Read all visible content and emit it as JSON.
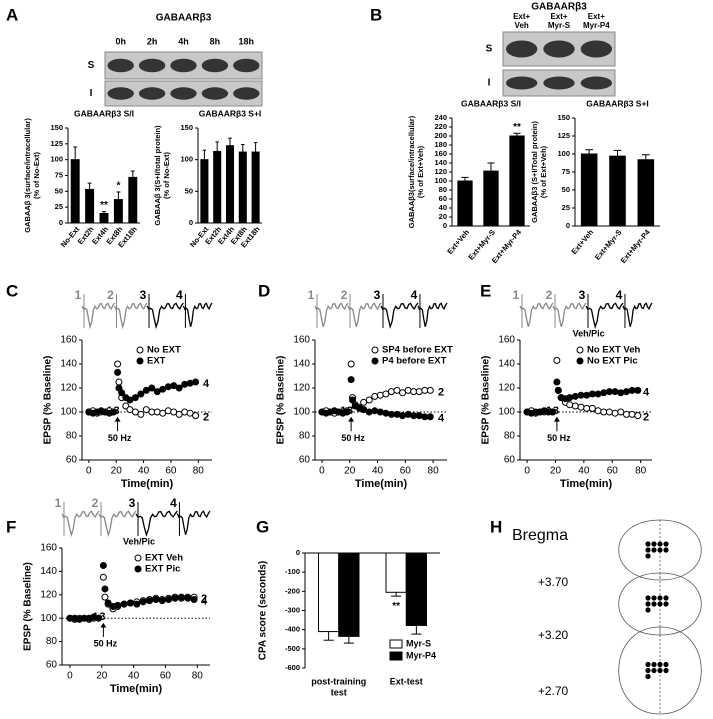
{
  "figure": {
    "panel_labels": [
      "A",
      "B",
      "C",
      "D",
      "E",
      "F",
      "G",
      "H"
    ],
    "blot_a": {
      "title": "GABAARβ3",
      "lanes": [
        "0h",
        "2h",
        "4h",
        "8h",
        "18h"
      ],
      "rows": [
        "S",
        "I"
      ]
    },
    "blot_b": {
      "title": "GABAARβ3",
      "lanes": [
        [
          "Ext+",
          "Veh"
        ],
        [
          "Ext+",
          "Myr-S"
        ],
        [
          "Ext+",
          "Myr-P4"
        ]
      ],
      "rows": [
        "S",
        "I"
      ]
    },
    "atlas": {
      "title": "Bregma",
      "levels": [
        "+3.70",
        "+3.20",
        "+2.70"
      ]
    }
  },
  "chart_data": [
    {
      "type": "bar",
      "title": "GABAARβ3 S/I",
      "y_label": [
        "GABAAβ 3(surface/intracellular)",
        "(% of No-Ext)"
      ],
      "categories": [
        "No-Ext",
        "Ext2h",
        "Ext4h",
        "Ext8h",
        "Ext18h"
      ],
      "values": [
        100,
        53,
        15,
        37,
        72
      ],
      "errors": [
        20,
        10,
        3,
        12,
        10
      ],
      "significance": [
        null,
        null,
        "**",
        "*",
        null
      ],
      "color": "#000000",
      "ylim": [
        0,
        150
      ],
      "yticks": [
        0,
        25,
        50,
        75,
        100,
        125,
        150
      ]
    },
    {
      "type": "bar",
      "title": "GABAARβ3 S+I",
      "y_label": [
        "GABAAβ 3(S+I/total protein)",
        "(% of No-Ext)"
      ],
      "categories": [
        "No-Ext",
        "Ext2h",
        "Ext4h",
        "Ext8h",
        "Ext18h"
      ],
      "values": [
        100,
        113,
        122,
        112,
        112
      ],
      "errors": [
        15,
        15,
        12,
        12,
        15
      ],
      "color": "#000000",
      "ylim": [
        0,
        150
      ],
      "yticks": [
        0,
        50,
        100,
        150
      ]
    },
    {
      "type": "bar",
      "title": "GABAARβ3 S/I",
      "y_label": [
        "GABAAβ3(surface/intracellular)",
        "(% of Ext+Veh)"
      ],
      "categories": [
        "Ext+Veh",
        "Ext+Myr-S",
        "Ext+Myr-P4"
      ],
      "values": [
        100,
        122,
        200
      ],
      "errors": [
        8,
        18,
        6
      ],
      "significance": [
        null,
        null,
        "**"
      ],
      "color": "#000000",
      "ylim": [
        0,
        240
      ],
      "yticks": [
        0,
        20,
        40,
        60,
        80,
        100,
        120,
        140,
        160,
        180,
        200,
        220,
        240
      ]
    },
    {
      "type": "bar",
      "title": "GABAARβ3 S+I",
      "y_label": [
        "GABAAβ3 (S+I/Total protein)",
        "(% of Ext+Veh)"
      ],
      "categories": [
        "Ext+Veh",
        "Ext+Myr-S",
        "Ext+Myr-P4"
      ],
      "values": [
        100,
        97,
        92
      ],
      "errors": [
        6,
        8,
        7
      ],
      "color": "#000000",
      "ylim": [
        0,
        150
      ],
      "yticks": [
        0,
        25,
        50,
        75,
        100,
        125,
        150
      ]
    },
    {
      "type": "line",
      "x": [
        0,
        3,
        6,
        9,
        12,
        15,
        18,
        21,
        22,
        24,
        27,
        30,
        34,
        38,
        42,
        46,
        50,
        54,
        58,
        62,
        66,
        70,
        74,
        78
      ],
      "series": [
        {
          "name": "No EXT",
          "marker_fill": "#ffffff",
          "end_label": "2",
          "values": [
            100,
            101,
            99,
            100,
            100,
            101,
            100,
            140,
            125,
            112,
            105,
            102,
            100,
            98,
            102,
            100,
            100,
            99,
            101,
            100,
            98,
            100,
            99,
            97
          ]
        },
        {
          "name": "EXT",
          "marker_fill": "#000000",
          "end_label": "4",
          "values": [
            100,
            99,
            100,
            101,
            100,
            99,
            100,
            133,
            120,
            116,
            112,
            110,
            112,
            115,
            118,
            120,
            117,
            119,
            121,
            122,
            120,
            123,
            124,
            125
          ]
        }
      ],
      "xlim": [
        -5,
        90
      ],
      "ylim": [
        60,
        160
      ],
      "xticks": [
        0,
        20,
        40,
        60,
        80
      ],
      "yticks": [
        60,
        80,
        100,
        120,
        140,
        160
      ],
      "x_label": "Time(min)",
      "y_label": "EPSP (% Baseline)",
      "reference_line": 100,
      "stimulus": {
        "x": 21,
        "label": "50 Hz"
      },
      "start_labels": [
        "1",
        "3"
      ],
      "trace_labels": [
        "1",
        "2",
        "3",
        "4"
      ]
    },
    {
      "type": "line",
      "x": [
        0,
        3,
        6,
        9,
        12,
        15,
        18,
        21,
        22,
        24,
        27,
        30,
        34,
        38,
        42,
        46,
        50,
        54,
        58,
        62,
        66,
        70,
        74,
        78
      ],
      "series": [
        {
          "name": "SP4 before EXT",
          "marker_fill": "#ffffff",
          "end_label": "2",
          "values": [
            100,
            101,
            100,
            99,
            100,
            100,
            101,
            140,
            112,
            106,
            104,
            108,
            110,
            113,
            114,
            115,
            117,
            118,
            116,
            118,
            117,
            117,
            118,
            118
          ]
        },
        {
          "name": "P4 before EXT",
          "marker_fill": "#000000",
          "end_label": "4",
          "values": [
            100,
            99,
            100,
            101,
            100,
            99,
            100,
            127,
            110,
            105,
            103,
            102,
            100,
            101,
            100,
            99,
            98,
            98,
            97,
            98,
            97,
            97,
            96,
            96
          ]
        }
      ],
      "xlim": [
        -5,
        90
      ],
      "ylim": [
        60,
        160
      ],
      "xticks": [
        0,
        20,
        40,
        60,
        80
      ],
      "yticks": [
        60,
        80,
        100,
        120,
        140,
        160
      ],
      "x_label": "Time(min)",
      "y_label": "EPSP (% Baseline)",
      "reference_line": 100,
      "stimulus": {
        "x": 21,
        "label": "50 Hz"
      },
      "start_labels": [
        "1",
        "3"
      ],
      "trace_labels": [
        "1",
        "2",
        "3",
        "4"
      ]
    },
    {
      "type": "line",
      "x": [
        0,
        3,
        6,
        9,
        12,
        15,
        18,
        21,
        22,
        24,
        27,
        30,
        34,
        38,
        42,
        46,
        50,
        54,
        58,
        62,
        66,
        70,
        74,
        78
      ],
      "series": [
        {
          "name": "No EXT Veh",
          "marker_fill": "#ffffff",
          "end_label": "2",
          "values": [
            100,
            101,
            99,
            100,
            100,
            101,
            100,
            143,
            118,
            112,
            108,
            106,
            105,
            104,
            103,
            103,
            101,
            100,
            100,
            99,
            100,
            98,
            98,
            97
          ]
        },
        {
          "name": "No EXT Pic",
          "marker_fill": "#000000",
          "end_label": "4",
          "values": [
            100,
            99,
            100,
            100,
            101,
            100,
            100,
            125,
            118,
            112,
            111,
            112,
            113,
            114,
            114,
            115,
            115,
            116,
            117,
            117,
            116,
            117,
            118,
            118
          ]
        }
      ],
      "xlim": [
        -5,
        88
      ],
      "ylim": [
        60,
        160
      ],
      "xticks": [
        0,
        20,
        40,
        60,
        80
      ],
      "yticks": [
        60,
        80,
        100,
        120,
        140,
        160
      ],
      "x_label": "Time(min)",
      "y_label": "EPSP (% Baseline)",
      "reference_line": 100,
      "stimulus": {
        "x": 21,
        "label": "50 Hz"
      },
      "start_labels": [
        "1",
        "3"
      ],
      "trace_labels": [
        "1",
        "2",
        "3",
        "4"
      ],
      "sub_label": "Veh/Pic"
    },
    {
      "type": "line",
      "x": [
        0,
        3,
        6,
        9,
        12,
        15,
        18,
        21,
        22,
        24,
        27,
        30,
        34,
        38,
        42,
        46,
        50,
        54,
        58,
        62,
        66,
        70,
        74,
        78
      ],
      "series": [
        {
          "name": "EXT Veh",
          "marker_fill": "#ffffff",
          "end_label": "2",
          "values": [
            100,
            99,
            100,
            100,
            99,
            100,
            100,
            135,
            118,
            112,
            108,
            110,
            112,
            113,
            114,
            115,
            116,
            117,
            116,
            117,
            118,
            117,
            118,
            118
          ]
        },
        {
          "name": "EXT Pic",
          "marker_fill": "#000000",
          "end_label": "4",
          "values": [
            100,
            100,
            99,
            100,
            100,
            101,
            100,
            145,
            125,
            113,
            110,
            111,
            112,
            113,
            112,
            114,
            115,
            116,
            115,
            116,
            117,
            118,
            117,
            116
          ]
        }
      ],
      "xlim": [
        -5,
        88
      ],
      "ylim": [
        60,
        160
      ],
      "xticks": [
        0,
        20,
        40,
        60,
        80
      ],
      "yticks": [
        60,
        80,
        100,
        120,
        140,
        160
      ],
      "x_label": "Time(min)",
      "y_label": "EPSP (% Baseline)",
      "reference_line": 100,
      "stimulus": {
        "x": 21,
        "label": "50 Hz"
      },
      "start_labels": [
        "1",
        "3"
      ],
      "trace_labels": [
        "1",
        "2",
        "3",
        "4"
      ],
      "sub_label": "Veh/Pic"
    },
    {
      "type": "bar",
      "y_label": "CPA score (seconds)",
      "categories": [
        [
          "post-training",
          "test"
        ],
        [
          "Ext-test"
        ]
      ],
      "series": [
        {
          "name": "Myr-S",
          "color": "#ffffff",
          "values": [
            -410,
            -205
          ],
          "errors": [
            45,
            20
          ],
          "significance": [
            null,
            "**"
          ]
        },
        {
          "name": "Myr-P4",
          "color": "#000000",
          "values": [
            -435,
            -378
          ],
          "errors": [
            35,
            45
          ]
        }
      ],
      "ylim": [
        -600,
        0
      ],
      "yticks": [
        0,
        -100,
        -200,
        -300,
        -400,
        -500,
        -600
      ],
      "legend": "lower right"
    }
  ]
}
